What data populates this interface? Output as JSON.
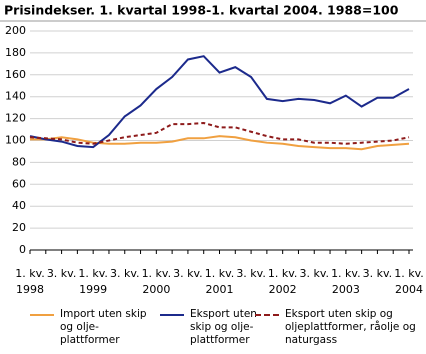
{
  "chart_data": {
    "type": "line",
    "title": "Prisindekser. 1. kvartal 1998-1. kvartal 2004. 1988=100",
    "categories": [
      [
        "1. kv.",
        "1998"
      ],
      null,
      [
        "3. kv."
      ],
      null,
      [
        "1. kv.",
        "1999"
      ],
      null,
      [
        "3. kv."
      ],
      null,
      [
        "1. kv.",
        "2000"
      ],
      null,
      [
        "3. kv."
      ],
      null,
      [
        "1. kv.",
        "2001"
      ],
      null,
      [
        "3. kv."
      ],
      null,
      [
        "1. kv.",
        "2002"
      ],
      null,
      [
        "3. kv."
      ],
      null,
      [
        "1. kv.",
        "2003"
      ],
      null,
      [
        "3. kv."
      ],
      null,
      [
        "1. kv.",
        "2004"
      ]
    ],
    "series": [
      {
        "name": "Import uten skip og olje-plattformer",
        "color": "#f0a040",
        "dashed": false,
        "values": [
          101,
          101,
          103,
          101,
          98,
          97,
          97,
          98,
          98,
          99,
          102,
          102,
          104,
          103,
          100,
          98,
          97,
          95,
          94,
          93,
          93,
          92,
          95,
          96,
          97
        ]
      },
      {
        "name": "Eksport uten skip og olje-plattformer",
        "color": "#1c2a8c",
        "dashed": false,
        "values": [
          104,
          101,
          99,
          95,
          94,
          105,
          122,
          132,
          147,
          158,
          174,
          177,
          162,
          167,
          158,
          138,
          136,
          138,
          137,
          134,
          141,
          131,
          139,
          139,
          147
        ]
      },
      {
        "name": "Eksport uten skip og oljeplattformer, råolje og naturgass",
        "color": "#8e1b1b",
        "dashed": true,
        "values": [
          103,
          102,
          101,
          98,
          97,
          100,
          103,
          105,
          107,
          115,
          115,
          116,
          112,
          112,
          108,
          104,
          101,
          101,
          98,
          98,
          97,
          98,
          99,
          100,
          103
        ]
      }
    ],
    "ylim": [
      0,
      200
    ],
    "yticks": [
      0,
      20,
      40,
      60,
      80,
      100,
      120,
      140,
      160,
      180,
      200
    ],
    "grid": true
  }
}
